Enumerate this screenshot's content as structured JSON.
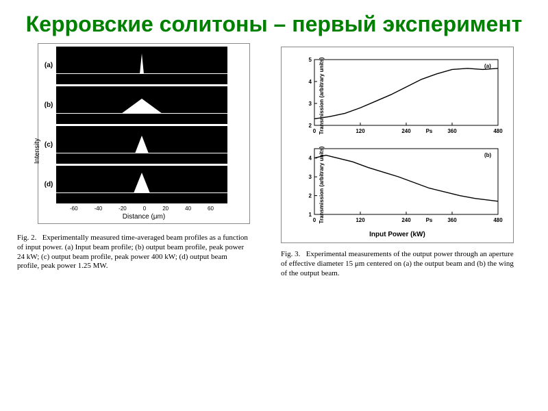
{
  "slide": {
    "title": "Керровские солитоны – первый эксперимент"
  },
  "colors": {
    "title": "#008000",
    "panel_bg": "#000000",
    "trace": "#ffffff",
    "frame_border": "#888888",
    "chart_line": "#000000",
    "page_bg": "#ffffff"
  },
  "left_figure": {
    "panels": [
      {
        "label": "(a)",
        "peak_width": 6,
        "peak_height": 30
      },
      {
        "label": "(b)",
        "peak_width": 60,
        "peak_height": 22
      },
      {
        "label": "(c)",
        "peak_width": 20,
        "peak_height": 26
      },
      {
        "label": "(d)",
        "peak_width": 24,
        "peak_height": 30
      }
    ],
    "x_ticks": [
      "-60",
      "-40",
      "-20",
      "0",
      "20",
      "40",
      "60"
    ],
    "x_axis_label": "Distance (μm)",
    "y_axis_label": "Intensity",
    "caption_prefix": "Fig. 2.",
    "caption": "Experimentally measured time-averaged beam profiles as a function of input power.   (a) Input beam profile; (b) output beam profile, peak power 24 kW; (c) output beam profile, peak power 400 kW; (d) output beam profile, peak power 1.25 MW."
  },
  "right_figure": {
    "chart_a": {
      "panel_label": "(a)",
      "ylabel": "Transmission (arbitrary units)",
      "x_ticks": [
        0,
        120,
        240,
        360,
        480
      ],
      "y_ticks": [
        2,
        3,
        4,
        5
      ],
      "xlim": [
        0,
        480
      ],
      "ylim": [
        2,
        5
      ],
      "line_color": "#000000",
      "points": [
        [
          0,
          2.3
        ],
        [
          40,
          2.4
        ],
        [
          80,
          2.55
        ],
        [
          120,
          2.8
        ],
        [
          160,
          3.1
        ],
        [
          200,
          3.4
        ],
        [
          240,
          3.75
        ],
        [
          280,
          4.1
        ],
        [
          320,
          4.35
        ],
        [
          360,
          4.55
        ],
        [
          400,
          4.6
        ],
        [
          440,
          4.55
        ],
        [
          480,
          4.6
        ]
      ]
    },
    "chart_b": {
      "panel_label": "(b)",
      "ylabel": "Transmission (arbitrary units)",
      "xlabel": "Input Power (kW)",
      "x_ticks": [
        0,
        120,
        240,
        360,
        480
      ],
      "y_ticks": [
        1,
        2,
        3,
        4
      ],
      "xlim": [
        0,
        480
      ],
      "ylim": [
        1,
        4.5
      ],
      "line_color": "#000000",
      "points": [
        [
          0,
          4.0
        ],
        [
          30,
          4.15
        ],
        [
          60,
          4.0
        ],
        [
          100,
          3.8
        ],
        [
          140,
          3.5
        ],
        [
          180,
          3.25
        ],
        [
          220,
          3.0
        ],
        [
          260,
          2.7
        ],
        [
          300,
          2.4
        ],
        [
          340,
          2.2
        ],
        [
          380,
          2.0
        ],
        [
          420,
          1.85
        ],
        [
          460,
          1.75
        ],
        [
          480,
          1.7
        ]
      ]
    },
    "caption_prefix": "Fig. 3.",
    "caption": "Experimental measurements of the output power through an aperture of effective diameter 15 μm centered on (a) the output beam and (b) the wing of the output beam.",
    "ps_label": "Ps"
  }
}
